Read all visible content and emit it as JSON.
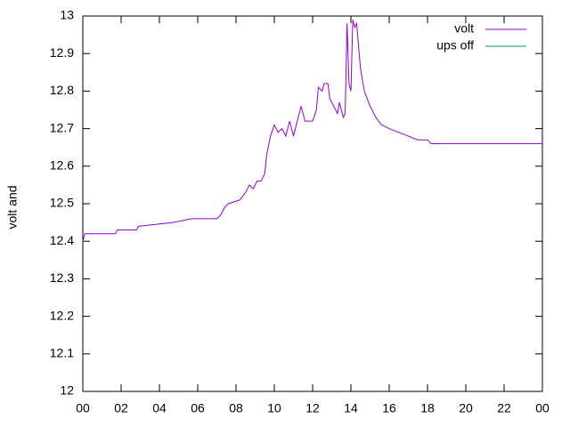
{
  "chart_data": {
    "type": "line",
    "ylabel": "volt and",
    "x": [
      0,
      0.1,
      0.5,
      1.7,
      1.8,
      2.8,
      2.9,
      4.7,
      5.7,
      7.0,
      7.2,
      7.4,
      7.6,
      8.2,
      8.5,
      8.7,
      8.9,
      9.1,
      9.3,
      9.5,
      9.6,
      9.8,
      10.0,
      10.2,
      10.4,
      10.6,
      10.8,
      11.0,
      11.2,
      11.4,
      11.6,
      11.8,
      12.0,
      12.2,
      12.3,
      12.5,
      12.6,
      12.8,
      12.9,
      13.1,
      13.3,
      13.4,
      13.6,
      13.7,
      13.8,
      13.9,
      14.0,
      14.1,
      14.2,
      14.3,
      14.4,
      14.5,
      14.7,
      15.0,
      15.3,
      15.6,
      16.0,
      16.5,
      17.0,
      17.5,
      18.0,
      18.2,
      24
    ],
    "series": [
      {
        "name": "volt",
        "color": "#9400d3",
        "values": [
          12.4,
          12.42,
          12.42,
          12.42,
          12.43,
          12.43,
          12.44,
          12.45,
          12.46,
          12.46,
          12.47,
          12.49,
          12.5,
          12.51,
          12.53,
          12.55,
          12.54,
          12.56,
          12.56,
          12.58,
          12.63,
          12.68,
          12.71,
          12.69,
          12.7,
          12.68,
          12.72,
          12.68,
          12.72,
          12.76,
          12.72,
          12.72,
          12.72,
          12.75,
          12.81,
          12.8,
          12.82,
          12.82,
          12.78,
          12.76,
          12.74,
          12.77,
          12.73,
          12.74,
          12.98,
          12.82,
          12.8,
          12.99,
          12.97,
          12.98,
          12.92,
          12.86,
          12.8,
          12.76,
          12.73,
          12.71,
          12.7,
          12.69,
          12.68,
          12.67,
          12.67,
          12.66,
          12.66
        ]
      },
      {
        "name": "ups off",
        "color": "#009e73",
        "values": [
          null,
          null,
          null,
          null,
          null,
          null,
          null,
          null,
          null,
          null,
          null,
          null,
          null,
          null,
          null,
          null,
          null,
          null,
          null,
          null,
          null,
          null,
          null,
          null,
          null,
          null,
          null,
          null,
          null,
          null,
          null,
          null,
          null,
          null,
          null,
          null,
          null,
          null,
          null,
          null,
          null,
          null,
          null,
          null,
          null,
          null,
          null,
          null,
          null,
          null,
          null,
          null,
          null,
          null,
          null,
          null,
          null,
          null,
          null,
          null,
          null,
          null,
          null
        ]
      }
    ],
    "xlim": [
      0,
      24
    ],
    "xticks": [
      {
        "value": 0,
        "label": "00"
      },
      {
        "value": 2,
        "label": "02"
      },
      {
        "value": 4,
        "label": "04"
      },
      {
        "value": 6,
        "label": "06"
      },
      {
        "value": 8,
        "label": "08"
      },
      10,
      12,
      14,
      16,
      18,
      20,
      22,
      {
        "value": 24,
        "label": "00"
      }
    ],
    "ylim": [
      12,
      13
    ],
    "yticks": [
      12,
      12.1,
      12.2,
      12.3,
      12.4,
      12.5,
      12.6,
      12.7,
      12.8,
      12.9,
      13
    ],
    "legend": "top-right"
  }
}
